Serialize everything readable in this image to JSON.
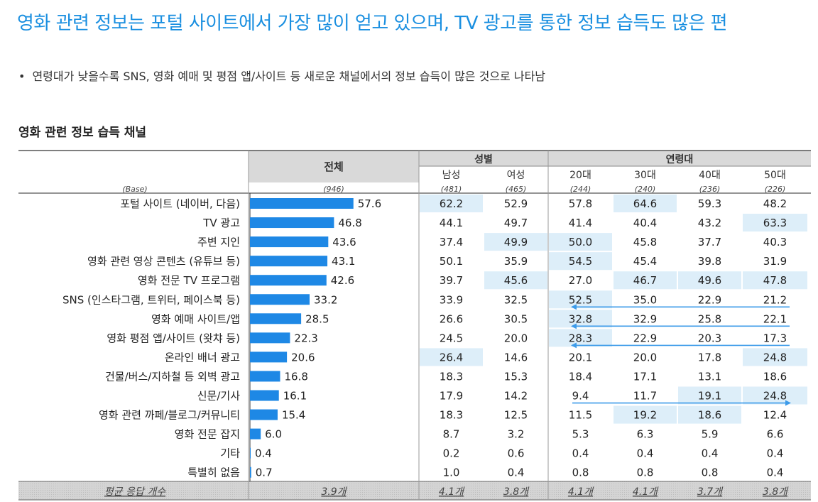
{
  "headline": "영화 관련 정보는 포털 사이트에서 가장 많이 얻고 있으며, TV 광고를 통한 정보 습득도 많은 편",
  "bullet": "연령대가 낮을수록 SNS, 영화 예매 및 평점 앱/사이트 등 새로운 채널에서의 정보 습득이 많은 것으로 나타남",
  "section_title": "영화 관련 정보 습득 채널",
  "colors": {
    "bar": "#1e88e5",
    "highlight": "#ddeef9",
    "header": "#d9d9d9",
    "arrow": "#3d9be9"
  },
  "chart_data": {
    "type": "bar",
    "title": "영화 관련 정보 습득 채널",
    "total_header": "전체",
    "base_label": "(Base)",
    "group_headers": [
      "성별",
      "연령대"
    ],
    "columns": [
      "남성",
      "여성",
      "20대",
      "30대",
      "40대",
      "50대"
    ],
    "bases": {
      "total": "(946)",
      "columns": [
        "(481)",
        "(465)",
        "(244)",
        "(240)",
        "(236)",
        "(226)"
      ]
    },
    "categories": [
      "포털 사이트 (네이버, 다음)",
      "TV 광고",
      "주변 지인",
      "영화 관련 영상 콘텐츠 (유튜브 등)",
      "영화 전문 TV 프로그램",
      "SNS (인스타그램, 트위터, 페이스북 등)",
      "영화 예매 사이트/앱",
      "영화 평점 앱/사이트 (왓챠 등)",
      "온라인 배너 광고",
      "건물/버스/지하철 등 외벽 광고",
      "신문/기사",
      "영화 관련 까페/블로그/커뮤니티",
      "영화 전문 잡지",
      "기타",
      "특별히 없음"
    ],
    "values": [
      57.6,
      46.8,
      43.6,
      43.1,
      42.6,
      33.2,
      28.5,
      22.3,
      20.6,
      16.8,
      16.1,
      15.4,
      6.0,
      0.4,
      0.7
    ],
    "table": [
      [
        "62.2",
        "52.9",
        "57.8",
        "64.6",
        "59.3",
        "48.2"
      ],
      [
        "44.1",
        "49.7",
        "41.4",
        "40.4",
        "43.2",
        "63.3"
      ],
      [
        "37.4",
        "49.9",
        "50.0",
        "45.8",
        "37.7",
        "40.3"
      ],
      [
        "50.1",
        "35.9",
        "54.5",
        "45.4",
        "39.8",
        "31.9"
      ],
      [
        "39.7",
        "45.6",
        "27.0",
        "46.7",
        "49.6",
        "47.8"
      ],
      [
        "33.9",
        "32.5",
        "52.5",
        "35.0",
        "22.9",
        "21.2"
      ],
      [
        "26.6",
        "30.5",
        "32.8",
        "32.9",
        "25.8",
        "22.1"
      ],
      [
        "24.5",
        "20.0",
        "28.3",
        "22.9",
        "20.3",
        "17.3"
      ],
      [
        "26.4",
        "14.6",
        "20.1",
        "20.0",
        "17.8",
        "24.8"
      ],
      [
        "18.3",
        "15.3",
        "18.4",
        "17.1",
        "13.1",
        "18.6"
      ],
      [
        "17.9",
        "14.2",
        "9.4",
        "11.7",
        "19.1",
        "24.8"
      ],
      [
        "18.3",
        "12.5",
        "11.5",
        "19.2",
        "18.6",
        "12.4"
      ],
      [
        "8.7",
        "3.2",
        "5.3",
        "6.3",
        "5.9",
        "6.6"
      ],
      [
        "0.2",
        "0.6",
        "0.4",
        "0.4",
        "0.4",
        "0.4"
      ],
      [
        "1.0",
        "0.4",
        "0.8",
        "0.8",
        "0.8",
        "0.4"
      ]
    ],
    "highlights": [
      [
        0,
        0
      ],
      [
        0,
        3
      ],
      [
        1,
        5
      ],
      [
        2,
        1
      ],
      [
        2,
        2
      ],
      [
        3,
        2
      ],
      [
        4,
        1
      ],
      [
        4,
        3
      ],
      [
        4,
        4
      ],
      [
        4,
        5
      ],
      [
        5,
        2
      ],
      [
        6,
        2
      ],
      [
        7,
        2
      ],
      [
        8,
        0
      ],
      [
        8,
        5
      ],
      [
        10,
        4
      ],
      [
        10,
        5
      ],
      [
        11,
        3
      ],
      [
        11,
        4
      ]
    ],
    "footer": {
      "label": "평균 응답 개수",
      "total": "3.9개",
      "columns": [
        "4.1개",
        "3.8개",
        "4.1개",
        "4.1개",
        "3.7개",
        "3.8개"
      ]
    },
    "annotations": [
      {
        "type": "arrow",
        "row": 5,
        "direction": "left",
        "note": "50대→20대"
      },
      {
        "type": "arrow",
        "row": 6,
        "direction": "left",
        "note": "50대→20대"
      },
      {
        "type": "arrow",
        "row": 7,
        "direction": "left",
        "note": "50대→20대"
      },
      {
        "type": "arrow",
        "row": 10,
        "direction": "right",
        "note": "20대→50대"
      }
    ],
    "xlim": [
      0,
      100
    ]
  }
}
